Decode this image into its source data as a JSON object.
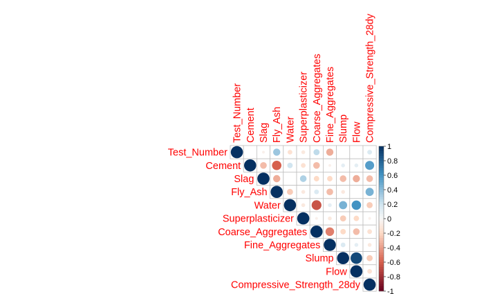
{
  "chart_data": {
    "type": "heatmap",
    "style": "corrplot-upper-circles",
    "variables": [
      "Test_Number",
      "Cement",
      "Slag",
      "Fly_Ash",
      "Water",
      "Superplasticizer",
      "Coarse_Aggregates",
      "Fine_Aggregates",
      "Slump",
      "Flow",
      "Compressive_Strength_28dy"
    ],
    "matrix_upper": [
      [
        1.0,
        0.0,
        -0.05,
        0.35,
        -0.15,
        -0.1,
        0.25,
        -0.35,
        0.0,
        0.0,
        0.15
      ],
      [
        null,
        1.0,
        -0.3,
        -0.6,
        0.2,
        -0.15,
        -0.3,
        -0.05,
        0.1,
        0.1,
        0.55
      ],
      [
        null,
        null,
        1.0,
        -0.35,
        0.0,
        0.3,
        -0.2,
        -0.2,
        -0.3,
        -0.35,
        -0.3
      ],
      [
        null,
        null,
        null,
        1.0,
        -0.25,
        -0.1,
        0.15,
        -0.3,
        -0.1,
        0.0,
        0.45
      ],
      [
        null,
        null,
        null,
        null,
        1.0,
        -0.1,
        -0.65,
        0.1,
        0.45,
        0.6,
        -0.25
      ],
      [
        null,
        null,
        null,
        null,
        null,
        1.0,
        -0.05,
        -0.1,
        -0.25,
        -0.2,
        -0.05
      ],
      [
        null,
        null,
        null,
        null,
        null,
        null,
        1.0,
        -0.5,
        -0.2,
        -0.3,
        -0.15
      ],
      [
        null,
        null,
        null,
        null,
        null,
        null,
        null,
        1.0,
        0.15,
        0.1,
        -0.1
      ],
      [
        null,
        null,
        null,
        null,
        null,
        null,
        null,
        null,
        1.0,
        0.9,
        -0.25
      ],
      [
        null,
        null,
        null,
        null,
        null,
        null,
        null,
        null,
        null,
        1.0,
        -0.15
      ],
      [
        null,
        null,
        null,
        null,
        null,
        null,
        null,
        null,
        null,
        null,
        1.0
      ]
    ],
    "colorbar": {
      "ticks": [
        "1",
        "0.8",
        "0.6",
        "0.4",
        "0.2",
        "0",
        "-0.2",
        "-0.4",
        "-0.6",
        "-0.8",
        "-1"
      ],
      "range": [
        -1,
        1
      ]
    },
    "colors": {
      "label_text": "#ff0000",
      "strong_positive": "#053061",
      "positive": "#4393c3",
      "neutral": "#f7f7f7",
      "negative": "#d6604d",
      "strong_negative": "#67001f",
      "grid": "#bebebe"
    }
  }
}
